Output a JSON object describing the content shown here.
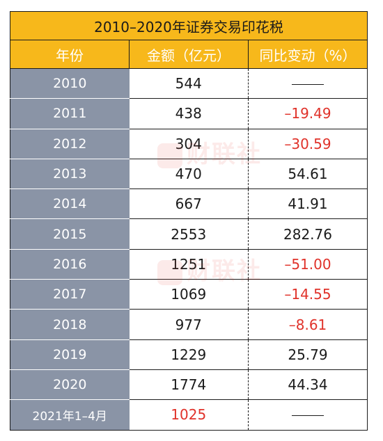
{
  "table": {
    "title": "2010–2020年证券交易印花税",
    "headers": [
      "年份",
      "金额（亿元）",
      "同比变动（%）"
    ],
    "rows": [
      {
        "year": "2010",
        "amount": "544",
        "change": ""
      },
      {
        "year": "2011",
        "amount": "438",
        "change": "–19.49"
      },
      {
        "year": "2012",
        "amount": "304",
        "change": "–30.59"
      },
      {
        "year": "2013",
        "amount": "470",
        "change": "54.61"
      },
      {
        "year": "2014",
        "amount": "667",
        "change": "41.91"
      },
      {
        "year": "2015",
        "amount": "2553",
        "change": "282.76"
      },
      {
        "year": "2016",
        "amount": "1251",
        "change": "–51.00"
      },
      {
        "year": "2017",
        "amount": "1069",
        "change": "–14.55"
      },
      {
        "year": "2018",
        "amount": "977",
        "change": "–8.61"
      },
      {
        "year": "2019",
        "amount": "1229",
        "change": "25.79"
      },
      {
        "year": "2020",
        "amount": "1774",
        "change": "44.34"
      },
      {
        "year": "2021年1–4月",
        "amount": "1025",
        "change": ""
      }
    ]
  },
  "watermark": {
    "text": "财联社"
  },
  "colors": {
    "header_bg": "#f7b81b",
    "year_bg": "#8a94a6",
    "negative": "#e0322a"
  }
}
